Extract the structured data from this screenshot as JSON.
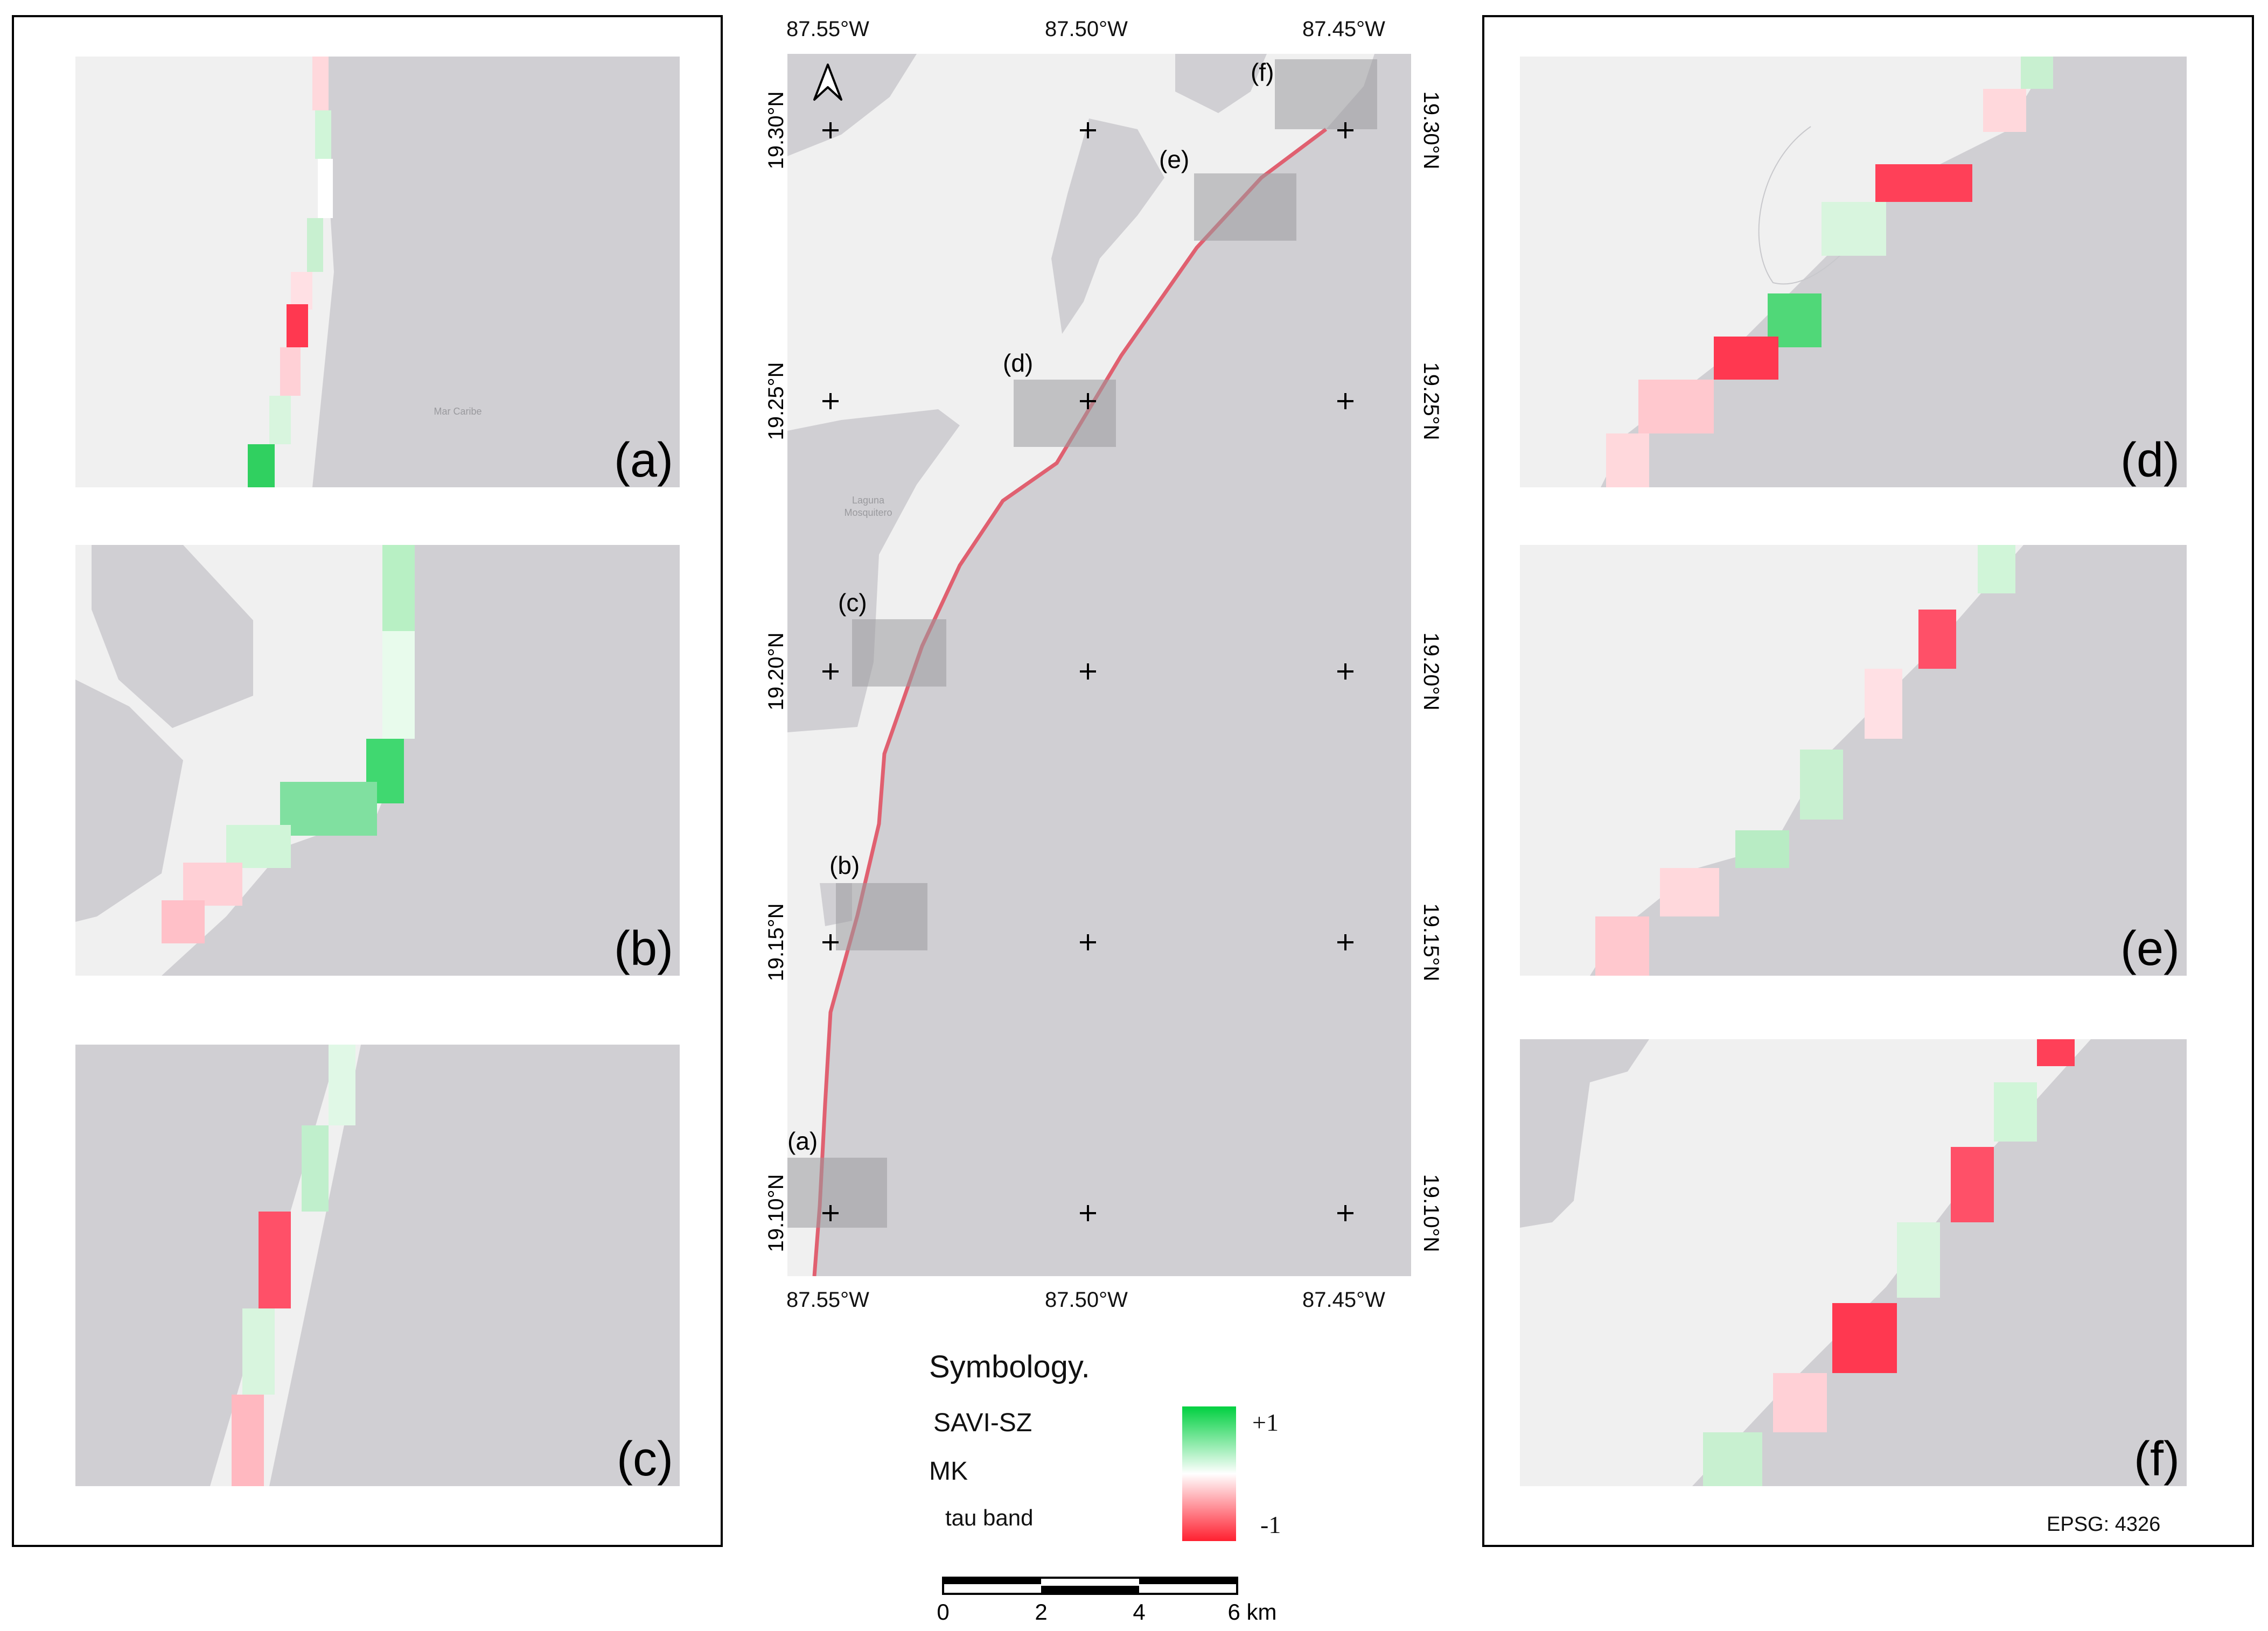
{
  "main_map": {
    "lon_labels": [
      "87.55°W",
      "87.50°W",
      "87.45°W"
    ],
    "lat_labels": [
      "19.30°N",
      "19.25°N",
      "19.20°N",
      "19.15°N",
      "19.10°N"
    ],
    "place_labels": {
      "lagoon_line1": "Laguna",
      "lagoon_line2": "Mosquitero"
    },
    "inset_markers": [
      "(a)",
      "(b)",
      "(c)",
      "(d)",
      "(e)",
      "(f)"
    ],
    "north_arrow_icon": "north-arrow-icon"
  },
  "insets": {
    "a": {
      "label": "(a)",
      "place_label": "Mar Caribe"
    },
    "b": {
      "label": "(b)"
    },
    "c": {
      "label": "(c)"
    },
    "d": {
      "label": "(d)"
    },
    "e": {
      "label": "(e)"
    },
    "f": {
      "label": "(f)"
    }
  },
  "legend": {
    "title": "Symbology.",
    "layer": "SAVI-SZ",
    "method": "MK",
    "band": "tau band",
    "max_label": "+1",
    "min_label": "-1"
  },
  "scale_bar": {
    "labels": [
      "0",
      "2",
      "4",
      "6 km"
    ]
  },
  "crs": "EPSG: 4326",
  "colors": {
    "sea": "#d0cfd3",
    "land": "#f0f0f0",
    "positive": "#00d040",
    "neutral": "#ffffff",
    "negative": "#ff2030"
  }
}
